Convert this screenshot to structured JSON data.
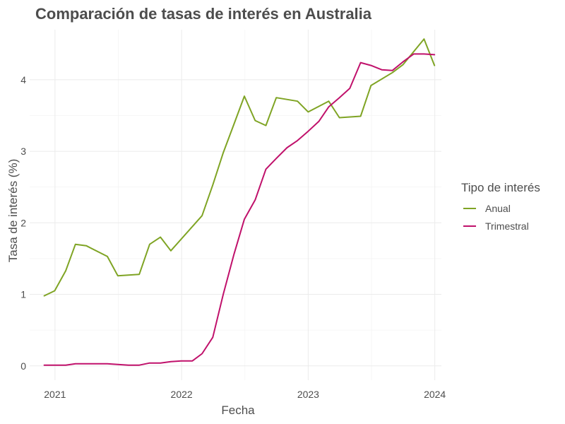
{
  "chart_data": {
    "type": "line",
    "title": "Comparación de tasas de interés en Australia",
    "xlabel": "Fecha",
    "ylabel": "Tasa de interés (%)",
    "xlim": [
      "2020-10-20",
      "2024-01-20"
    ],
    "ylim": [
      -0.2,
      4.7
    ],
    "x_ticks": [
      {
        "date": "2021-01-01",
        "label": "2021"
      },
      {
        "date": "2022-01-01",
        "label": "2022"
      },
      {
        "date": "2023-01-01",
        "label": "2023"
      },
      {
        "date": "2024-01-01",
        "label": "2024"
      }
    ],
    "y_ticks": [
      0,
      1,
      2,
      3,
      4
    ],
    "grid": true,
    "legend": {
      "title": "Tipo de interés",
      "position": "right"
    },
    "series": [
      {
        "name": "Anual",
        "color": "#7fa424",
        "points": [
          [
            "2020-12-01",
            0.98
          ],
          [
            "2020-12-31",
            1.05
          ],
          [
            "2021-02-01",
            1.33
          ],
          [
            "2021-03-01",
            1.7
          ],
          [
            "2021-04-01",
            1.68
          ],
          [
            "2021-06-01",
            1.53
          ],
          [
            "2021-07-01",
            1.26
          ],
          [
            "2021-09-01",
            1.28
          ],
          [
            "2021-10-01",
            1.7
          ],
          [
            "2021-11-01",
            1.8
          ],
          [
            "2021-12-01",
            1.61
          ],
          [
            "2022-03-01",
            2.1
          ],
          [
            "2022-04-01",
            2.53
          ],
          [
            "2022-05-01",
            2.98
          ],
          [
            "2022-06-01",
            3.38
          ],
          [
            "2022-07-01",
            3.77
          ],
          [
            "2022-08-01",
            3.43
          ],
          [
            "2022-09-01",
            3.36
          ],
          [
            "2022-10-01",
            3.75
          ],
          [
            "2022-12-01",
            3.7
          ],
          [
            "2023-01-01",
            3.55
          ],
          [
            "2023-03-01",
            3.7
          ],
          [
            "2023-04-01",
            3.47
          ],
          [
            "2023-06-01",
            3.49
          ],
          [
            "2023-07-01",
            3.92
          ],
          [
            "2023-09-01",
            4.1
          ],
          [
            "2023-10-01",
            4.21
          ],
          [
            "2023-12-01",
            4.57
          ],
          [
            "2023-12-31",
            4.2
          ]
        ]
      },
      {
        "name": "Trimestral",
        "color": "#c0116b",
        "points": [
          [
            "2020-12-01",
            0.01
          ],
          [
            "2021-01-01",
            0.01
          ],
          [
            "2021-02-01",
            0.01
          ],
          [
            "2021-03-01",
            0.03
          ],
          [
            "2021-04-01",
            0.03
          ],
          [
            "2021-05-01",
            0.03
          ],
          [
            "2021-06-01",
            0.03
          ],
          [
            "2021-07-01",
            0.02
          ],
          [
            "2021-08-01",
            0.01
          ],
          [
            "2021-09-01",
            0.01
          ],
          [
            "2021-10-01",
            0.04
          ],
          [
            "2021-11-01",
            0.04
          ],
          [
            "2021-12-01",
            0.06
          ],
          [
            "2022-01-01",
            0.07
          ],
          [
            "2022-02-01",
            0.07
          ],
          [
            "2022-03-01",
            0.17
          ],
          [
            "2022-04-01",
            0.4
          ],
          [
            "2022-05-01",
            1.0
          ],
          [
            "2022-06-01",
            1.56
          ],
          [
            "2022-07-01",
            2.05
          ],
          [
            "2022-08-01",
            2.32
          ],
          [
            "2022-09-01",
            2.75
          ],
          [
            "2022-10-01",
            2.9
          ],
          [
            "2022-11-01",
            3.05
          ],
          [
            "2022-12-01",
            3.15
          ],
          [
            "2023-01-01",
            3.28
          ],
          [
            "2023-02-01",
            3.42
          ],
          [
            "2023-03-01",
            3.62
          ],
          [
            "2023-04-01",
            3.75
          ],
          [
            "2023-05-01",
            3.88
          ],
          [
            "2023-06-01",
            4.24
          ],
          [
            "2023-07-01",
            4.2
          ],
          [
            "2023-08-01",
            4.14
          ],
          [
            "2023-09-01",
            4.13
          ],
          [
            "2023-10-01",
            4.25
          ],
          [
            "2023-11-01",
            4.36
          ],
          [
            "2023-12-01",
            4.36
          ],
          [
            "2023-12-31",
            4.35
          ]
        ]
      }
    ]
  }
}
